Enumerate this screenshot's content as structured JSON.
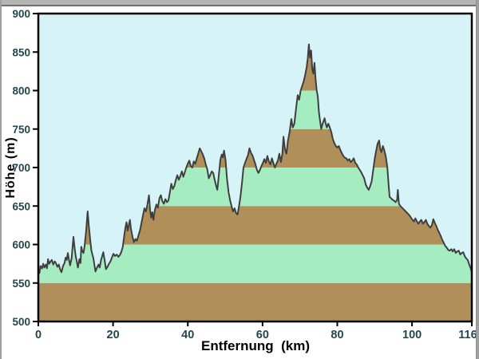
{
  "window": {
    "top_bar_color": "#b4b4b4",
    "top_bar_edge_color": "#6f6f6f",
    "side_border_color": "#a0a0a0",
    "background": "#ffffff"
  },
  "chart_data": {
    "type": "area",
    "title": "",
    "xlabel": "Entfernung  (km)",
    "ylabel": "Höhe (m)",
    "xlim": [
      0,
      116
    ],
    "ylim": [
      500,
      900
    ],
    "x_ticks": [
      0,
      20,
      40,
      60,
      80,
      100,
      116
    ],
    "y_ticks": [
      500,
      550,
      600,
      650,
      700,
      750,
      800,
      850,
      900
    ],
    "grid": false,
    "legend": null,
    "plot_bg_color": "#d6f4f7",
    "line_color": "#3f3f3f",
    "axis_color": "#000000",
    "tick_label_color": "#25454f",
    "bands": {
      "start": 500,
      "step": 50,
      "colors": [
        "#b18f5b",
        "#a6ecc1"
      ],
      "description": "alternating 50 m elevation bands filled under the profile"
    },
    "series": [
      {
        "name": "elevation-profile",
        "points": [
          [
            0,
            567
          ],
          [
            0.3,
            563
          ],
          [
            0.6,
            572
          ],
          [
            1,
            569
          ],
          [
            1.3,
            575
          ],
          [
            1.6,
            570
          ],
          [
            2,
            574
          ],
          [
            2.3,
            569
          ],
          [
            2.6,
            581
          ],
          [
            2.9,
            575
          ],
          [
            3.3,
            578
          ],
          [
            3.6,
            580
          ],
          [
            4,
            574
          ],
          [
            4.4,
            578
          ],
          [
            4.7,
            576
          ],
          [
            5.1,
            571
          ],
          [
            5.5,
            574
          ],
          [
            5.8,
            568
          ],
          [
            6.2,
            564
          ],
          [
            6.6,
            572
          ],
          [
            7,
            576
          ],
          [
            7.3,
            583
          ],
          [
            7.6,
            580
          ],
          [
            7.9,
            589
          ],
          [
            8.2,
            580
          ],
          [
            8.5,
            573
          ],
          [
            8.9,
            582
          ],
          [
            9.4,
            610
          ],
          [
            9.7,
            596
          ],
          [
            10,
            585
          ],
          [
            10.3,
            578
          ],
          [
            10.6,
            570
          ],
          [
            11,
            581
          ],
          [
            11.3,
            576
          ],
          [
            11.5,
            597
          ],
          [
            11.8,
            591
          ],
          [
            12.1,
            589
          ],
          [
            12.4,
            598
          ],
          [
            12.8,
            618
          ],
          [
            13.2,
            643
          ],
          [
            13.5,
            625
          ],
          [
            13.8,
            610
          ],
          [
            14.2,
            592
          ],
          [
            14.7,
            583
          ],
          [
            15,
            574
          ],
          [
            15.3,
            565
          ],
          [
            15.7,
            570
          ],
          [
            16.1,
            574
          ],
          [
            16.4,
            570
          ],
          [
            16.8,
            580
          ],
          [
            17.1,
            585
          ],
          [
            17.4,
            590
          ],
          [
            17.8,
            578
          ],
          [
            18.1,
            568
          ],
          [
            18.5,
            571
          ],
          [
            18.9,
            575
          ],
          [
            19.3,
            578
          ],
          [
            19.7,
            583
          ],
          [
            20.1,
            588
          ],
          [
            20.5,
            585
          ],
          [
            21,
            587
          ],
          [
            21.4,
            584
          ],
          [
            21.8,
            586
          ],
          [
            22.2,
            590
          ],
          [
            22.6,
            597
          ],
          [
            23,
            612
          ],
          [
            23.3,
            622
          ],
          [
            23.6,
            629
          ],
          [
            23.9,
            618
          ],
          [
            24.2,
            625
          ],
          [
            24.5,
            632
          ],
          [
            24.8,
            620
          ],
          [
            25.2,
            610
          ],
          [
            25.6,
            603
          ],
          [
            26,
            607
          ],
          [
            26.4,
            605
          ],
          [
            26.8,
            612
          ],
          [
            27.2,
            618
          ],
          [
            27.6,
            628
          ],
          [
            28,
            638
          ],
          [
            28.4,
            647
          ],
          [
            28.8,
            643
          ],
          [
            29.2,
            652
          ],
          [
            29.6,
            664
          ],
          [
            29.9,
            645
          ],
          [
            30.2,
            635
          ],
          [
            30.5,
            642
          ],
          [
            30.8,
            632
          ],
          [
            31.2,
            645
          ],
          [
            31.6,
            652
          ],
          [
            32,
            648
          ],
          [
            32.4,
            660
          ],
          [
            32.8,
            664
          ],
          [
            33.2,
            656
          ],
          [
            33.6,
            653
          ],
          [
            34,
            659
          ],
          [
            34.4,
            655
          ],
          [
            34.8,
            657
          ],
          [
            35.2,
            668
          ],
          [
            35.6,
            679
          ],
          [
            36,
            672
          ],
          [
            36.4,
            676
          ],
          [
            36.8,
            684
          ],
          [
            37.2,
            690
          ],
          [
            37.6,
            684
          ],
          [
            38,
            689
          ],
          [
            38.4,
            695
          ],
          [
            38.8,
            688
          ],
          [
            39.2,
            694
          ],
          [
            39.6,
            700
          ],
          [
            40,
            705
          ],
          [
            40.4,
            709
          ],
          [
            40.8,
            702
          ],
          [
            41.2,
            700
          ],
          [
            41.6,
            708
          ],
          [
            42,
            705
          ],
          [
            42.4,
            712
          ],
          [
            42.8,
            718
          ],
          [
            43.2,
            725
          ],
          [
            43.6,
            721
          ],
          [
            44,
            717
          ],
          [
            44.4,
            712
          ],
          [
            44.8,
            704
          ],
          [
            45.2,
            698
          ],
          [
            45.6,
            686
          ],
          [
            46,
            690
          ],
          [
            46.4,
            695
          ],
          [
            46.8,
            693
          ],
          [
            47.2,
            684
          ],
          [
            47.6,
            676
          ],
          [
            47.9,
            671
          ],
          [
            48.3,
            690
          ],
          [
            48.7,
            710
          ],
          [
            49.1,
            717
          ],
          [
            49.4,
            713
          ],
          [
            49.7,
            722
          ],
          [
            50.1,
            710
          ],
          [
            50.5,
            685
          ],
          [
            50.9,
            668
          ],
          [
            51.3,
            658
          ],
          [
            51.7,
            650
          ],
          [
            52.1,
            643
          ],
          [
            52.5,
            647
          ],
          [
            52.9,
            641
          ],
          [
            53.3,
            639
          ],
          [
            53.7,
            650
          ],
          [
            54.1,
            662
          ],
          [
            54.5,
            680
          ],
          [
            54.9,
            700
          ],
          [
            55.3,
            706
          ],
          [
            55.7,
            711
          ],
          [
            56.1,
            716
          ],
          [
            56.5,
            725
          ],
          [
            56.9,
            719
          ],
          [
            57.3,
            716
          ],
          [
            57.7,
            710
          ],
          [
            58.1,
            704
          ],
          [
            58.5,
            697
          ],
          [
            58.9,
            693
          ],
          [
            59.3,
            697
          ],
          [
            59.7,
            702
          ],
          [
            60.1,
            706
          ],
          [
            60.5,
            711
          ],
          [
            60.9,
            706
          ],
          [
            61.3,
            715
          ],
          [
            61.7,
            708
          ],
          [
            62.1,
            704
          ],
          [
            62.5,
            712
          ],
          [
            62.9,
            706
          ],
          [
            63.3,
            700
          ],
          [
            63.7,
            705
          ],
          [
            64.1,
            709
          ],
          [
            64.5,
            718
          ],
          [
            64.9,
            707
          ],
          [
            65.3,
            718
          ],
          [
            65.6,
            740
          ],
          [
            66,
            724
          ],
          [
            66.4,
            718
          ],
          [
            66.8,
            735
          ],
          [
            67.2,
            745
          ],
          [
            67.7,
            763
          ],
          [
            68.1,
            752
          ],
          [
            68.5,
            757
          ],
          [
            69,
            778
          ],
          [
            69.4,
            794
          ],
          [
            69.8,
            788
          ],
          [
            70.2,
            800
          ],
          [
            70.6,
            806
          ],
          [
            71,
            812
          ],
          [
            71.4,
            820
          ],
          [
            71.8,
            830
          ],
          [
            72.1,
            842
          ],
          [
            72.4,
            860
          ],
          [
            72.7,
            843
          ],
          [
            73,
            852
          ],
          [
            73.3,
            828
          ],
          [
            73.6,
            822
          ],
          [
            73.9,
            836
          ],
          [
            74.2,
            815
          ],
          [
            74.5,
            800
          ],
          [
            74.8,
            792
          ],
          [
            75.1,
            772
          ],
          [
            75.4,
            760
          ],
          [
            75.7,
            750
          ],
          [
            76,
            756
          ],
          [
            76.3,
            760
          ],
          [
            76.6,
            764
          ],
          [
            76.9,
            757
          ],
          [
            77.2,
            752
          ],
          [
            77.6,
            757
          ],
          [
            78,
            752
          ],
          [
            78.4,
            746
          ],
          [
            78.8,
            737
          ],
          [
            79.2,
            732
          ],
          [
            79.6,
            728
          ],
          [
            80,
            726
          ],
          [
            80.4,
            728
          ],
          [
            80.8,
            723
          ],
          [
            81.2,
            719
          ],
          [
            81.6,
            715
          ],
          [
            82,
            713
          ],
          [
            82.4,
            712
          ],
          [
            82.8,
            709
          ],
          [
            83.2,
            711
          ],
          [
            83.6,
            707
          ],
          [
            84,
            709
          ],
          [
            84.4,
            712
          ],
          [
            84.8,
            706
          ],
          [
            85.2,
            704
          ],
          [
            85.6,
            700
          ],
          [
            86,
            697
          ],
          [
            86.4,
            694
          ],
          [
            86.8,
            690
          ],
          [
            87.2,
            686
          ],
          [
            87.6,
            678
          ],
          [
            88,
            674
          ],
          [
            88.4,
            671
          ],
          [
            88.8,
            676
          ],
          [
            89.2,
            682
          ],
          [
            89.6,
            696
          ],
          [
            90,
            711
          ],
          [
            90.4,
            722
          ],
          [
            90.8,
            731
          ],
          [
            91.2,
            735
          ],
          [
            91.5,
            724
          ],
          [
            91.8,
            720
          ],
          [
            92.2,
            728
          ],
          [
            92.6,
            722
          ],
          [
            93,
            714
          ],
          [
            93.4,
            700
          ],
          [
            93.7,
            680
          ],
          [
            94,
            662
          ],
          [
            94.4,
            660
          ],
          [
            94.8,
            658
          ],
          [
            95.2,
            657
          ],
          [
            95.6,
            655
          ],
          [
            96,
            658
          ],
          [
            96.2,
            671
          ],
          [
            96.5,
            653
          ],
          [
            96.9,
            650
          ],
          [
            97.3,
            648
          ],
          [
            97.7,
            646
          ],
          [
            98.1,
            644
          ],
          [
            98.5,
            642
          ],
          [
            98.9,
            640
          ],
          [
            99.3,
            638
          ],
          [
            99.7,
            635
          ],
          [
            100.1,
            632
          ],
          [
            100.5,
            630
          ],
          [
            100.9,
            634
          ],
          [
            101.3,
            630
          ],
          [
            101.7,
            627
          ],
          [
            102.1,
            630
          ],
          [
            102.5,
            632
          ],
          [
            102.9,
            627
          ],
          [
            103.3,
            629
          ],
          [
            103.7,
            632
          ],
          [
            104.1,
            627
          ],
          [
            104.5,
            624
          ],
          [
            104.9,
            622
          ],
          [
            105.3,
            625
          ],
          [
            105.7,
            633
          ],
          [
            106.1,
            628
          ],
          [
            106.5,
            624
          ],
          [
            106.9,
            619
          ],
          [
            107.3,
            615
          ],
          [
            107.7,
            611
          ],
          [
            108.1,
            606
          ],
          [
            108.5,
            602
          ],
          [
            108.9,
            598
          ],
          [
            109.3,
            596
          ],
          [
            109.7,
            593
          ],
          [
            110.1,
            592
          ],
          [
            110.5,
            594
          ],
          [
            110.9,
            591
          ],
          [
            111.3,
            594
          ],
          [
            111.7,
            589
          ],
          [
            112.1,
            591
          ],
          [
            112.5,
            592
          ],
          [
            112.9,
            587
          ],
          [
            113.3,
            589
          ],
          [
            113.7,
            590
          ],
          [
            114.1,
            585
          ],
          [
            114.5,
            582
          ],
          [
            114.9,
            580
          ],
          [
            115.3,
            574
          ],
          [
            115.7,
            569
          ],
          [
            116,
            564
          ]
        ]
      }
    ]
  }
}
